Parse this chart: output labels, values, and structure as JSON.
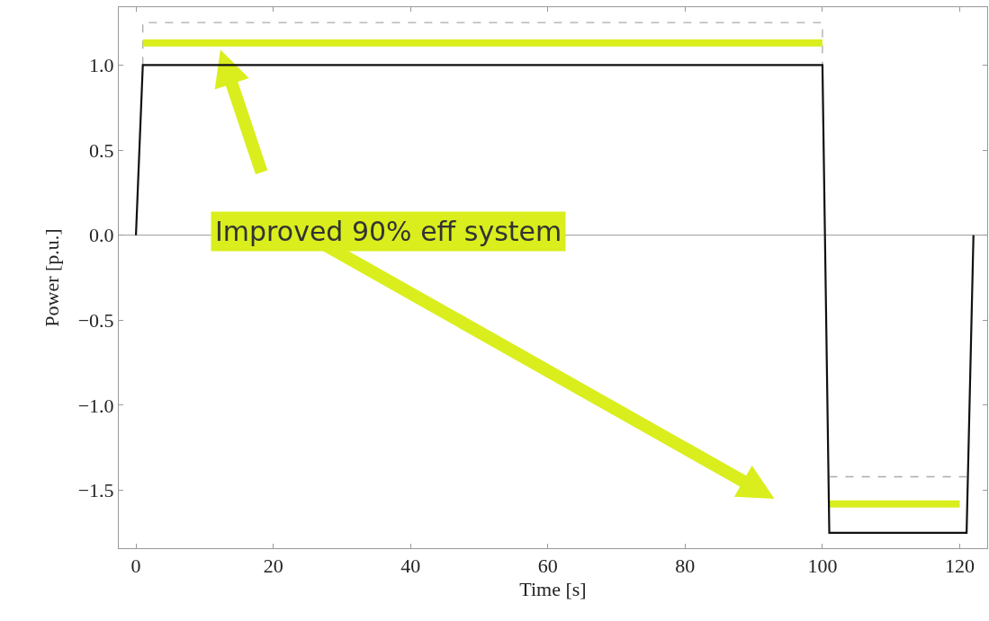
{
  "chart_data": {
    "type": "line",
    "xlabel": "Time [s]",
    "ylabel": "Power [p.u.]",
    "xlim": [
      -2.5,
      124
    ],
    "xticks": [
      0,
      20,
      40,
      60,
      80,
      100,
      120
    ],
    "ylim": [
      -1.84,
      1.34
    ],
    "yticks": [
      {
        "value": -1.5,
        "label": "−1.5"
      },
      {
        "value": -1,
        "label": "−1.0"
      },
      {
        "value": -0.5,
        "label": "−0.5"
      },
      {
        "value": 0,
        "label": "0.0"
      },
      {
        "value": 0.5,
        "label": "0.5"
      },
      {
        "value": 1,
        "label": "1.0"
      }
    ],
    "grid": false,
    "marker": "none",
    "ref_lines": [
      {
        "axis": "y",
        "value": 0,
        "color": "#999999"
      }
    ],
    "annotations": [
      "Improved 90% eff system"
    ],
    "series": [
      {
        "color": "#aaaaaa",
        "line_style": "dashed",
        "x": [
          1,
          1,
          100,
          100,
          null,
          101,
          121
        ],
        "values": [
          1,
          1.25,
          1.25,
          1,
          null,
          -1.42,
          -1.42
        ]
      },
      {
        "color": "#d9ee1c",
        "line_style": "solid",
        "x": [
          1,
          100,
          null,
          101,
          120
        ],
        "values": [
          1.13,
          1.13,
          null,
          -1.58,
          -1.58
        ]
      },
      {
        "color": "#111111",
        "line_style": "solid",
        "x": [
          0,
          1,
          100,
          101,
          121,
          122
        ],
        "values": [
          0,
          1,
          1,
          -1.75,
          -1.75,
          0
        ]
      }
    ]
  }
}
